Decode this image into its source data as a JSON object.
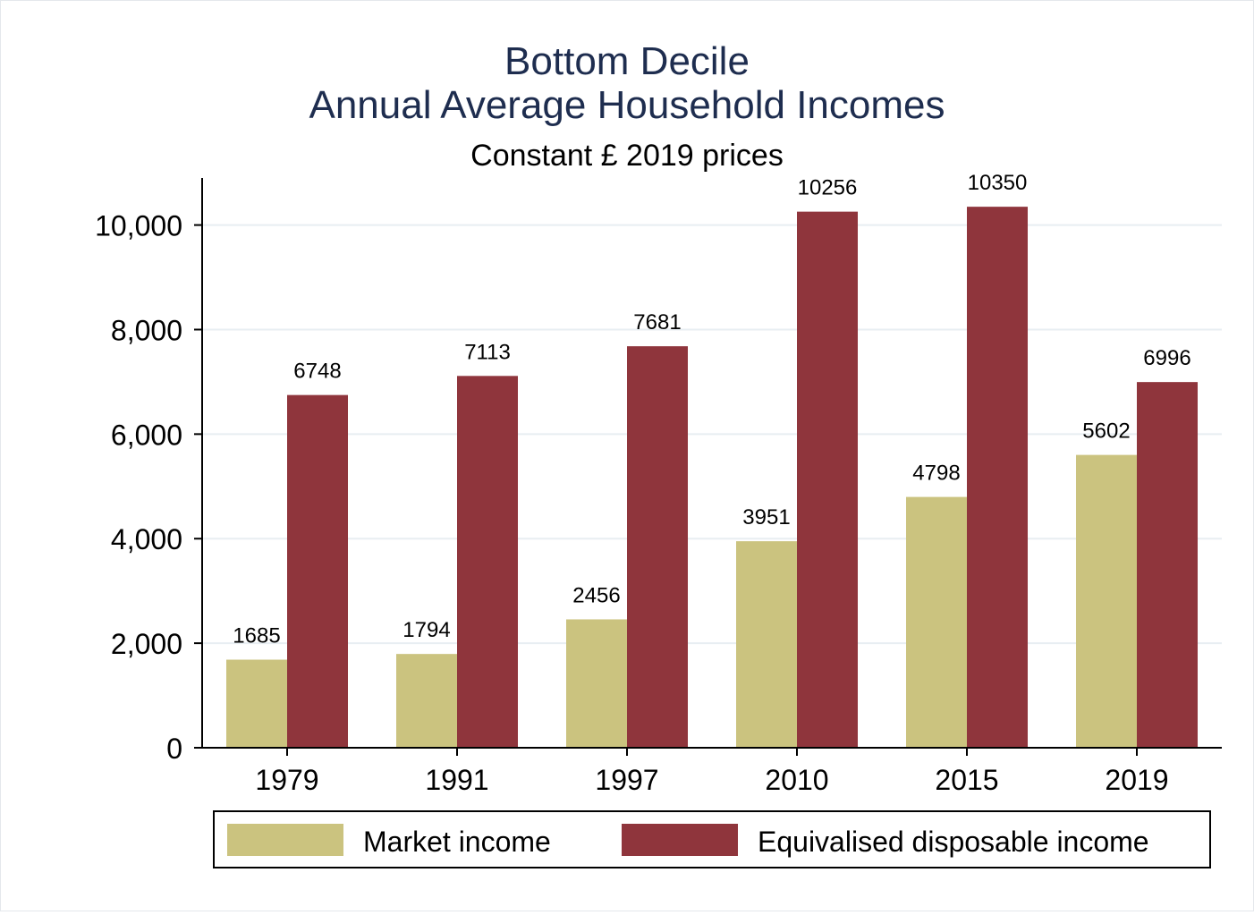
{
  "chart_data": {
    "type": "bar",
    "title": "Bottom Decile",
    "title_line2": "Annual Average Household Incomes",
    "subtitle": "Constant £ 2019 prices",
    "xlabel": "",
    "ylabel": "",
    "categories": [
      "1979",
      "1991",
      "1997",
      "2010",
      "2015",
      "2019"
    ],
    "series": [
      {
        "name": "Market income",
        "color": "#cbc37f",
        "values": [
          1685,
          1794,
          2456,
          3951,
          4798,
          5602
        ]
      },
      {
        "name": "Equivalised disposable income",
        "color": "#8f353c",
        "values": [
          6748,
          7113,
          7681,
          10256,
          10350,
          6996
        ]
      }
    ],
    "ylim": [
      0,
      10900
    ],
    "yticks": [
      0,
      2000,
      4000,
      6000,
      8000,
      10000
    ],
    "ytick_labels": [
      "0",
      "2,000",
      "4,000",
      "6,000",
      "8,000",
      "10,000"
    ],
    "grid": true,
    "legend": "bottom"
  },
  "colors": {
    "title": "#1e2d4f",
    "text": "#000000",
    "grid": "#e8eef2",
    "axis": "#000000"
  }
}
